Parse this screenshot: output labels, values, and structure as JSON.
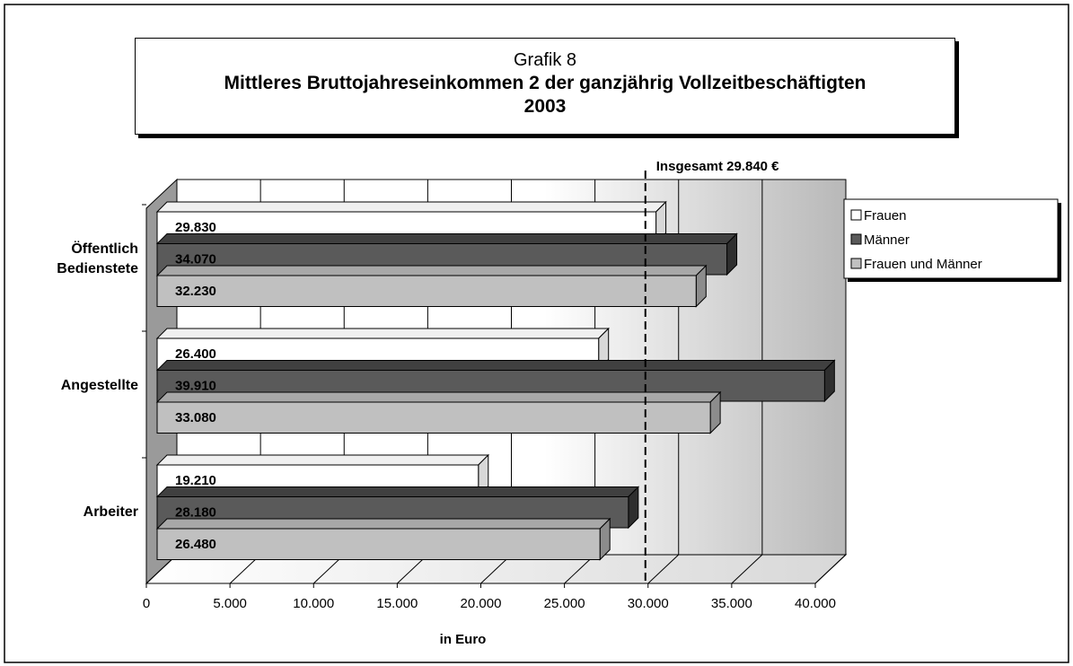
{
  "chart_data": {
    "type": "bar3d_horizontal",
    "title": "Grafik 8",
    "subtitle": [
      "Mittleres Bruttojahreseinkommen 2 der ganzjährig Vollzeitbeschäftigten",
      "2003"
    ],
    "categories": [
      "Öffentlich Bedienstete",
      "Angestellte",
      "Arbeiter"
    ],
    "series": [
      {
        "name": "Frauen",
        "color": "#ffffff",
        "values": [
          29830,
          26400,
          19210
        ],
        "value_labels": [
          "29.830",
          "26.400",
          "19.210"
        ]
      },
      {
        "name": "Männer",
        "color": "#5a5a5a",
        "values": [
          34070,
          39910,
          28180
        ],
        "value_labels": [
          "34.070",
          "39.910",
          "28.180"
        ]
      },
      {
        "name": "Frauen und Männer",
        "color": "#c0c0c0",
        "values": [
          32230,
          33080,
          26480
        ],
        "value_labels": [
          "32.230",
          "33.080",
          "26.480"
        ]
      }
    ],
    "xlim": [
      0,
      40000
    ],
    "xticks": [
      0,
      {
        "value": 5000,
        "label": "5.000"
      },
      {
        "value": 10000,
        "label": "10.000"
      },
      {
        "value": 15000,
        "label": "15.000"
      },
      {
        "value": 20000,
        "label": "20.000"
      },
      {
        "value": 25000,
        "label": "25.000"
      },
      {
        "value": 30000,
        "label": "30.000"
      },
      {
        "value": 35000,
        "label": "35.000"
      },
      {
        "value": 40000,
        "label": "40.000"
      }
    ],
    "xlabel": "in Euro",
    "reference_line": {
      "value": 29840,
      "label": "Insgesamt 29.840 €"
    },
    "grid": true,
    "legend": "right"
  }
}
